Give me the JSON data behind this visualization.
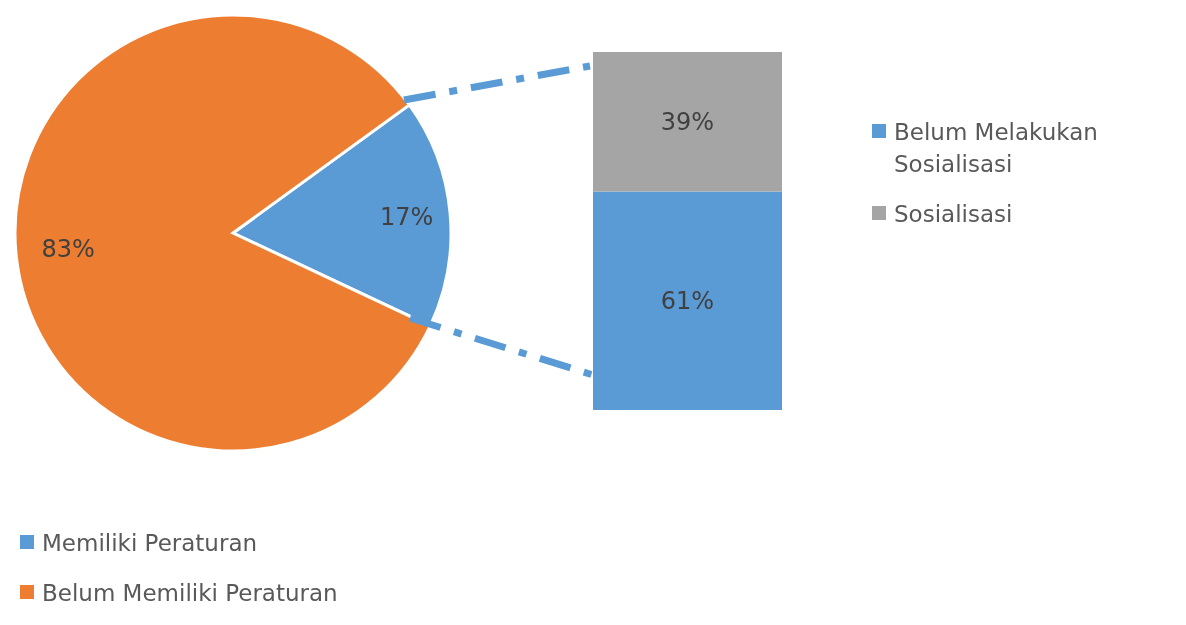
{
  "chart_data": [
    {
      "type": "pie",
      "categories": [
        "Memiliki Peraturan",
        "Belum Memiliki Peraturan"
      ],
      "values": [
        17,
        83
      ],
      "colors": [
        "#5b9bd5",
        "#ed7d31"
      ],
      "value_labels": [
        "17%",
        "83%"
      ],
      "legend": "bottom left"
    },
    {
      "type": "bar",
      "stacked": true,
      "categories": [
        null
      ],
      "ylim": [
        0,
        100
      ],
      "tick_labels": false,
      "legend": "right",
      "series": [
        {
          "name": "Belum Melakukan Sosialisasi",
          "color": "#5b9bd5",
          "values": [
            61
          ],
          "value_labels": [
            "61%"
          ]
        },
        {
          "name": "Sosialisasi",
          "color": "#a5a5a5",
          "values": [
            39
          ],
          "value_labels": [
            "39%"
          ]
        }
      ]
    }
  ]
}
